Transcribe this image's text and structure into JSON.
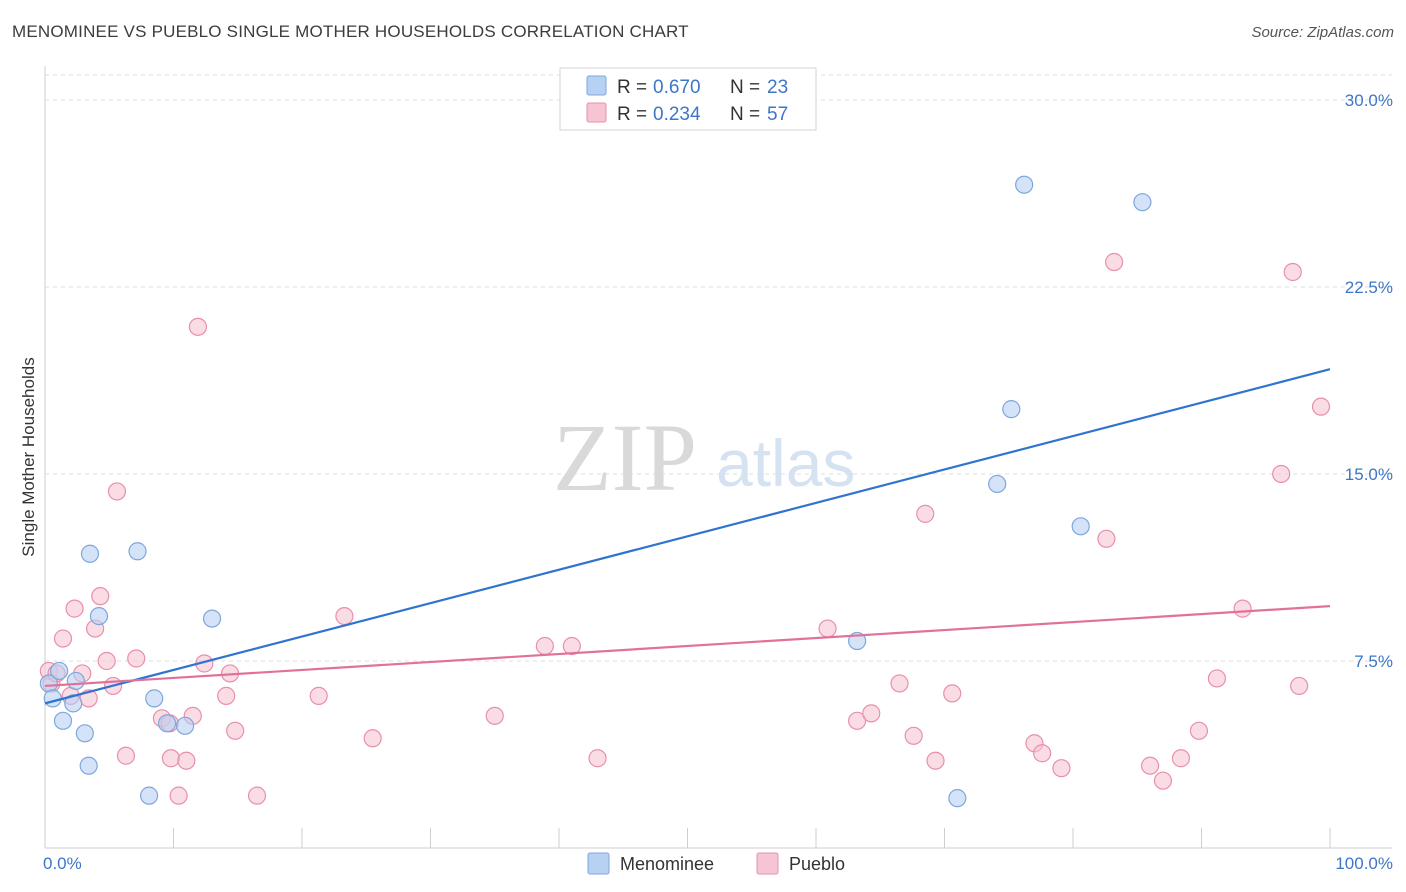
{
  "header": {
    "title": "MENOMINEE VS PUEBLO SINGLE MOTHER HOUSEHOLDS CORRELATION CHART",
    "source": "Source: ZipAtlas.com"
  },
  "watermark": {
    "zip": "ZIP",
    "atlas": "atlas"
  },
  "colors": {
    "menominee_fill": "#b7d1f2",
    "menominee_stroke": "#7ea7dc",
    "menominee_line": "#2f74d0",
    "pueblo_fill": "#f7c4d4",
    "pueblo_stroke": "#e98fab",
    "pueblo_line": "#e0729a",
    "tick_text": "#3d76c9",
    "grid": "#dddddd"
  },
  "legend": {
    "rows": [
      {
        "r_label": "R =",
        "r_value": "0.670",
        "n_label": "N =",
        "n_value": "23"
      },
      {
        "r_label": "R =",
        "r_value": "0.234",
        "n_label": "N =",
        "n_value": "57"
      }
    ]
  },
  "chart_data": {
    "type": "scatter",
    "title": "MENOMINEE VS PUEBLO SINGLE MOTHER HOUSEHOLDS CORRELATION CHART",
    "xlabel": "",
    "ylabel": "Single Mother Households",
    "xlim": [
      0,
      100
    ],
    "ylim": [
      0,
      31
    ],
    "x_tick_labels": [
      "0.0%",
      "100.0%"
    ],
    "y_ticks": [
      7.5,
      15,
      22.5,
      30
    ],
    "y_tick_labels": [
      "7.5%",
      "15.0%",
      "22.5%",
      "30.0%"
    ],
    "grid": true,
    "legend_position": "top-center",
    "series": [
      {
        "name": "Menominee",
        "r": 0.67,
        "n": 23,
        "trend": {
          "x": [
            0,
            100
          ],
          "y": [
            5.8,
            19.2
          ]
        },
        "points": [
          {
            "x": 0.3,
            "y": 6.6
          },
          {
            "x": 0.6,
            "y": 6.0
          },
          {
            "x": 1.1,
            "y": 7.1
          },
          {
            "x": 1.4,
            "y": 5.1
          },
          {
            "x": 2.2,
            "y": 5.8
          },
          {
            "x": 2.4,
            "y": 6.7
          },
          {
            "x": 3.1,
            "y": 4.6
          },
          {
            "x": 3.4,
            "y": 3.3
          },
          {
            "x": 3.5,
            "y": 11.8
          },
          {
            "x": 4.2,
            "y": 9.3
          },
          {
            "x": 7.2,
            "y": 11.9
          },
          {
            "x": 8.1,
            "y": 2.1
          },
          {
            "x": 8.5,
            "y": 6.0
          },
          {
            "x": 9.5,
            "y": 5.0
          },
          {
            "x": 10.9,
            "y": 4.9
          },
          {
            "x": 13.0,
            "y": 9.2
          },
          {
            "x": 63.2,
            "y": 8.3
          },
          {
            "x": 71.0,
            "y": 2.0
          },
          {
            "x": 74.1,
            "y": 14.6
          },
          {
            "x": 75.2,
            "y": 17.6
          },
          {
            "x": 76.2,
            "y": 26.6
          },
          {
            "x": 80.6,
            "y": 12.9
          },
          {
            "x": 85.4,
            "y": 25.9
          }
        ]
      },
      {
        "name": "Pueblo",
        "r": 0.234,
        "n": 57,
        "trend": {
          "x": [
            0,
            100
          ],
          "y": [
            6.5,
            9.7
          ]
        },
        "points": [
          {
            "x": 0.3,
            "y": 7.1
          },
          {
            "x": 0.5,
            "y": 6.6
          },
          {
            "x": 0.9,
            "y": 7.0
          },
          {
            "x": 1.4,
            "y": 8.4
          },
          {
            "x": 2.0,
            "y": 6.1
          },
          {
            "x": 2.3,
            "y": 9.6
          },
          {
            "x": 2.9,
            "y": 7.0
          },
          {
            "x": 3.4,
            "y": 6.0
          },
          {
            "x": 3.9,
            "y": 8.8
          },
          {
            "x": 4.3,
            "y": 10.1
          },
          {
            "x": 4.8,
            "y": 7.5
          },
          {
            "x": 5.3,
            "y": 6.5
          },
          {
            "x": 5.6,
            "y": 14.3
          },
          {
            "x": 6.3,
            "y": 3.7
          },
          {
            "x": 7.1,
            "y": 7.6
          },
          {
            "x": 9.1,
            "y": 5.2
          },
          {
            "x": 9.7,
            "y": 5.0
          },
          {
            "x": 9.8,
            "y": 3.6
          },
          {
            "x": 10.4,
            "y": 2.1
          },
          {
            "x": 11.0,
            "y": 3.5
          },
          {
            "x": 11.5,
            "y": 5.3
          },
          {
            "x": 11.9,
            "y": 20.9
          },
          {
            "x": 12.4,
            "y": 7.4
          },
          {
            "x": 14.1,
            "y": 6.1
          },
          {
            "x": 14.4,
            "y": 7.0
          },
          {
            "x": 14.8,
            "y": 4.7
          },
          {
            "x": 16.5,
            "y": 2.1
          },
          {
            "x": 21.3,
            "y": 6.1
          },
          {
            "x": 23.3,
            "y": 9.3
          },
          {
            "x": 25.5,
            "y": 4.4
          },
          {
            "x": 35.0,
            "y": 5.3
          },
          {
            "x": 38.9,
            "y": 8.1
          },
          {
            "x": 41.0,
            "y": 8.1
          },
          {
            "x": 43.0,
            "y": 3.6
          },
          {
            "x": 60.9,
            "y": 8.8
          },
          {
            "x": 63.2,
            "y": 5.1
          },
          {
            "x": 64.3,
            "y": 5.4
          },
          {
            "x": 66.5,
            "y": 6.6
          },
          {
            "x": 67.6,
            "y": 4.5
          },
          {
            "x": 68.5,
            "y": 13.4
          },
          {
            "x": 69.3,
            "y": 3.5
          },
          {
            "x": 70.6,
            "y": 6.2
          },
          {
            "x": 77.0,
            "y": 4.2
          },
          {
            "x": 77.6,
            "y": 3.8
          },
          {
            "x": 79.1,
            "y": 3.2
          },
          {
            "x": 82.6,
            "y": 12.4
          },
          {
            "x": 83.2,
            "y": 23.5
          },
          {
            "x": 86.0,
            "y": 3.3
          },
          {
            "x": 87.0,
            "y": 2.7
          },
          {
            "x": 88.4,
            "y": 3.6
          },
          {
            "x": 89.8,
            "y": 4.7
          },
          {
            "x": 91.2,
            "y": 6.8
          },
          {
            "x": 93.2,
            "y": 9.6
          },
          {
            "x": 96.2,
            "y": 15.0
          },
          {
            "x": 97.1,
            "y": 23.1
          },
          {
            "x": 97.6,
            "y": 6.5
          },
          {
            "x": 99.3,
            "y": 17.7
          }
        ]
      }
    ]
  }
}
